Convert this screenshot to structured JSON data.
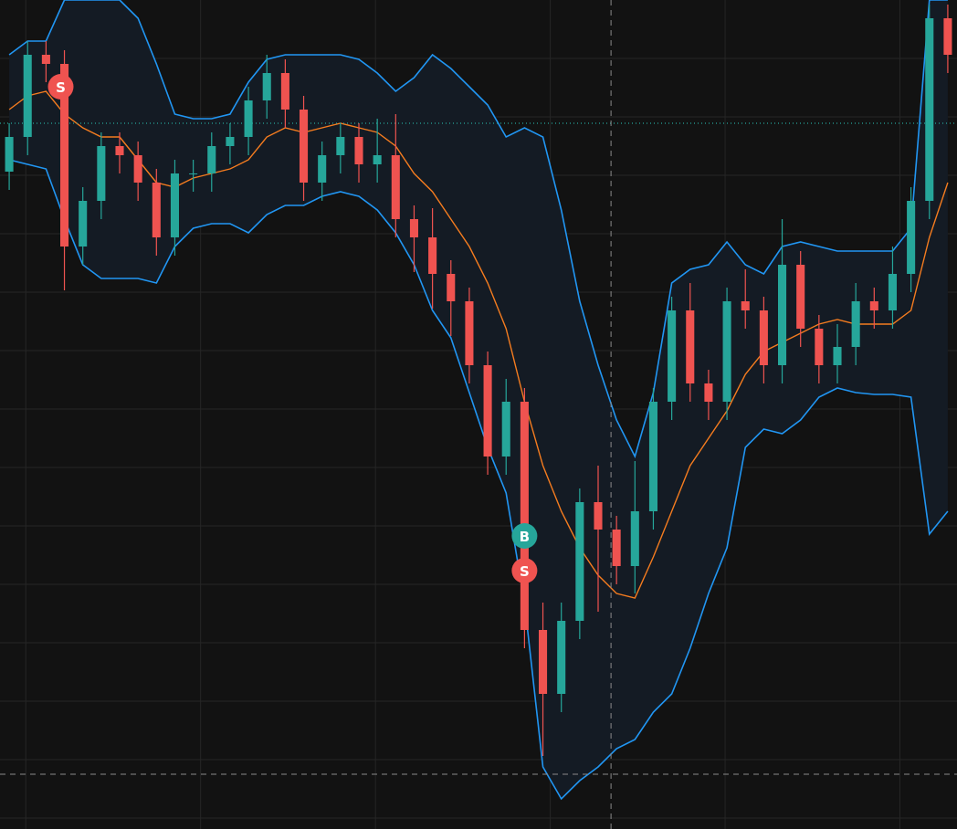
{
  "chart_data": {
    "type": "candlestick",
    "background": "#121212",
    "grid": true,
    "grid_color": "#262626",
    "xlim": [
      -0.5,
      51.5
    ],
    "ylim": [
      0,
      908
    ],
    "xticks": [
      0.9,
      10.4,
      19.9,
      29.4,
      38.9,
      48.4
    ],
    "yticks": [
      844,
      780,
      716,
      652,
      588,
      524,
      460,
      396,
      332,
      268,
      204,
      140,
      76,
      12
    ],
    "x": [
      0,
      1,
      2,
      3,
      4,
      5,
      6,
      7,
      8,
      9,
      10,
      11,
      12,
      13,
      14,
      15,
      16,
      17,
      18,
      19,
      20,
      21,
      22,
      23,
      24,
      25,
      26,
      27,
      28,
      29,
      30,
      31,
      32,
      33,
      34,
      35,
      36,
      37,
      38,
      39,
      40,
      41,
      42,
      43,
      44,
      45,
      46,
      47,
      48,
      49,
      50,
      51
    ],
    "open": [
      720,
      758,
      848,
      838,
      638,
      688,
      748,
      738,
      708,
      648,
      718,
      718,
      748,
      758,
      798,
      828,
      788,
      708,
      738,
      758,
      728,
      738,
      668,
      648,
      608,
      578,
      508,
      408,
      468,
      218,
      148,
      228,
      358,
      328,
      288,
      348,
      468,
      568,
      488,
      468,
      578,
      568,
      508,
      618,
      548,
      508,
      528,
      578,
      568,
      608,
      688,
      888
    ],
    "high": [
      773,
      863,
      863,
      853,
      703,
      763,
      763,
      753,
      723,
      733,
      733,
      763,
      773,
      813,
      848,
      843,
      803,
      753,
      773,
      773,
      778,
      783,
      683,
      680,
      623,
      593,
      523,
      493,
      483,
      248,
      248,
      373,
      398,
      343,
      403,
      483,
      583,
      598,
      503,
      593,
      613,
      583,
      668,
      633,
      563,
      553,
      598,
      593,
      638,
      703,
      903,
      903
    ],
    "low": [
      700,
      738,
      818,
      590,
      618,
      668,
      718,
      688,
      628,
      628,
      698,
      698,
      728,
      738,
      778,
      768,
      688,
      688,
      718,
      708,
      708,
      648,
      610,
      570,
      540,
      488,
      388,
      388,
      198,
      80,
      128,
      208,
      238,
      268,
      258,
      328,
      448,
      468,
      448,
      448,
      548,
      488,
      488,
      528,
      488,
      488,
      508,
      548,
      548,
      588,
      668,
      828
    ],
    "close": [
      758,
      848,
      838,
      638,
      688,
      748,
      738,
      708,
      648,
      718,
      718,
      748,
      758,
      798,
      828,
      788,
      708,
      738,
      758,
      728,
      738,
      668,
      648,
      608,
      578,
      508,
      408,
      468,
      218,
      148,
      228,
      358,
      328,
      288,
      348,
      468,
      568,
      488,
      468,
      578,
      568,
      508,
      618,
      548,
      508,
      528,
      578,
      568,
      608,
      688,
      888,
      848
    ],
    "up_color": "#26a69a",
    "down_color": "#ef5350",
    "bands": {
      "fill": "#141b24",
      "upper": {
        "color": "#2196f3",
        "values": [
          848,
          863,
          863,
          908,
          908,
          908,
          908,
          888,
          838,
          783,
          778,
          778,
          783,
          818,
          843,
          848,
          848,
          848,
          848,
          843,
          828,
          808,
          823,
          848,
          833,
          813,
          793,
          758,
          768,
          758,
          678,
          578,
          508,
          448,
          408,
          478,
          598,
          613,
          618,
          643,
          618,
          608,
          638,
          643,
          638,
          633,
          633,
          633,
          633,
          658,
          908,
          908
        ]
      },
      "middle": {
        "color": "#f57c1f",
        "values": [
          788,
          803,
          808,
          783,
          768,
          758,
          758,
          733,
          708,
          703,
          713,
          718,
          723,
          733,
          758,
          768,
          763,
          768,
          773,
          768,
          763,
          748,
          718,
          698,
          668,
          638,
          598,
          548,
          468,
          398,
          348,
          308,
          278,
          258,
          253,
          298,
          348,
          398,
          428,
          458,
          498,
          523,
          533,
          543,
          553,
          558,
          553,
          553,
          553,
          568,
          648,
          708
        ]
      },
      "lower": {
        "color": "#2196f3",
        "values": [
          733,
          728,
          723,
          668,
          618,
          603,
          603,
          603,
          598,
          638,
          658,
          663,
          663,
          653,
          673,
          683,
          683,
          693,
          698,
          693,
          678,
          653,
          618,
          568,
          538,
          478,
          418,
          368,
          248,
          68,
          33,
          53,
          68,
          88,
          98,
          128,
          148,
          198,
          258,
          308,
          418,
          438,
          433,
          448,
          473,
          483,
          478,
          476,
          476,
          473,
          323,
          348
        ]
      }
    },
    "price_line": {
      "value": 773,
      "color": "#26a69a"
    },
    "crosshair": {
      "x": 32.7,
      "value": 60,
      "color": "#8a8a8a"
    },
    "markers": [
      {
        "label": "S",
        "x": 2.8,
        "value": 813,
        "color": "#ef5350"
      },
      {
        "label": "B",
        "x": 28.0,
        "value": 321,
        "color": "#26a69a"
      },
      {
        "label": "S",
        "x": 28.0,
        "value": 283,
        "color": "#ef5350"
      }
    ]
  }
}
